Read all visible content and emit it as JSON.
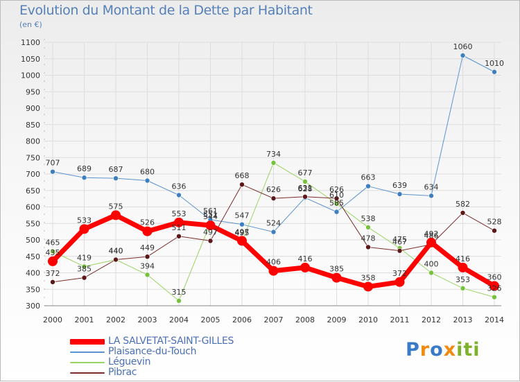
{
  "title": "Evolution du Montant de la Dette par Habitant",
  "unit_label": "(en €)",
  "logo_text": "Proxiti",
  "colors": {
    "axis_text": "#333333",
    "grid": "#dddddd",
    "title": "#5580b8"
  },
  "chart_data": {
    "type": "line",
    "title": "Evolution du Montant de la Dette par Habitant",
    "ylabel": "(en €)",
    "xlabel": "",
    "categories": [
      "2000",
      "2001",
      "2002",
      "2003",
      "2004",
      "2005",
      "2006",
      "2007",
      "2008",
      "2009",
      "2010",
      "2011",
      "2012",
      "2013",
      "2014"
    ],
    "ylim": [
      300,
      1100
    ],
    "yticks": [
      300,
      350,
      400,
      450,
      500,
      550,
      600,
      650,
      700,
      750,
      800,
      850,
      900,
      950,
      1000,
      1050,
      1100
    ],
    "grid": true,
    "legend_position": "bottom-left",
    "series": [
      {
        "name": "Plaisance-du-Touch",
        "color": "#5b93cf",
        "marker": "#3f7fc0",
        "width": 1,
        "values": [
          707,
          689,
          687,
          680,
          636,
          561,
          547,
          524,
          628,
          585,
          663,
          639,
          634,
          1060,
          1010
        ],
        "labels": [
          "707",
          "689",
          "687",
          "680",
          "636",
          "561",
          "547",
          "524",
          "628",
          "585",
          "663",
          "639",
          "634",
          "1060",
          "1010"
        ]
      },
      {
        "name": "Léguevin",
        "color": "#99d462",
        "marker": "#77c23c",
        "width": 1,
        "values": [
          465,
          419,
          440,
          394,
          315,
          551,
          495,
          734,
          677,
          610,
          538,
          475,
          400,
          353,
          326
        ],
        "labels": [
          "465",
          "419",
          "440",
          "394",
          "315",
          "551",
          "495",
          "734",
          "677",
          "610",
          "538",
          "475",
          "400",
          "353",
          "326"
        ]
      },
      {
        "name": "Pibrac",
        "color": "#7a2d2d",
        "marker": "#5c1818",
        "width": 1,
        "values": [
          372,
          385,
          440,
          449,
          511,
          497,
          668,
          626,
          631,
          626,
          478,
          467,
          486,
          582,
          528
        ],
        "labels": [
          "372",
          "385",
          "440",
          "449",
          "511",
          "497",
          "668",
          "626",
          "631",
          "626",
          "478",
          "467",
          "486",
          "582",
          "528"
        ]
      },
      {
        "name": "LA SALVETAT-SAINT-GILLES",
        "color": "#ff0000",
        "marker": "#ff0000",
        "width": 7,
        "values": [
          435,
          533,
          575,
          526,
          553,
          544,
          497,
          406,
          416,
          385,
          358,
          372,
          492,
          416,
          360
        ],
        "labels": [
          "435",
          "533",
          "575",
          "526",
          "553",
          "544",
          "497",
          "406",
          "416",
          "385",
          "358",
          "372",
          "492",
          "416",
          "360"
        ]
      }
    ],
    "legend": [
      {
        "name": "LA SALVETAT-SAINT-GILLES",
        "color": "#ff0000"
      },
      {
        "name": "Plaisance-du-Touch",
        "color": "#5b93cf"
      },
      {
        "name": "Léguevin",
        "color": "#99d462"
      },
      {
        "name": "Pibrac",
        "color": "#7a2d2d"
      }
    ]
  }
}
